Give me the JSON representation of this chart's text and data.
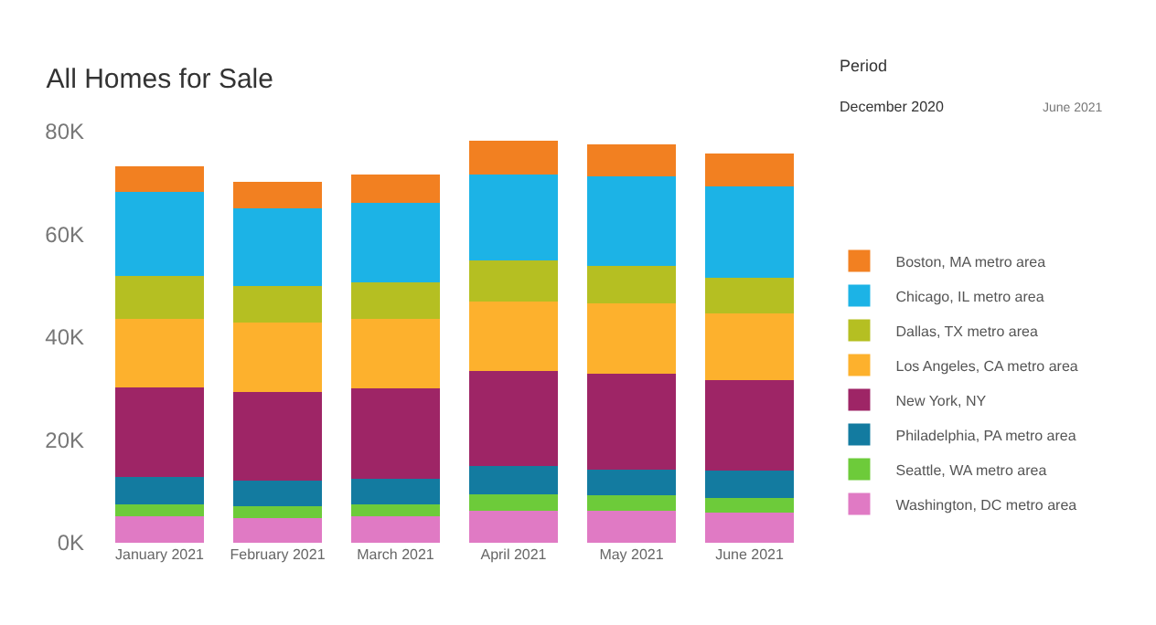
{
  "chart_data": {
    "type": "bar",
    "stacked": true,
    "title": "All Homes for Sale",
    "categories": [
      "January 2021",
      "February 2021",
      "March 2021",
      "April 2021",
      "May 2021",
      "June 2021"
    ],
    "series": [
      {
        "name": "Washington, DC metro area",
        "color": "#e07ac4",
        "values": [
          5.1,
          4.8,
          5.1,
          6.3,
          6.3,
          5.9
        ]
      },
      {
        "name": "Seattle, WA metro area",
        "color": "#6dcb3a",
        "values": [
          2.4,
          2.3,
          2.4,
          3.2,
          2.9,
          2.8
        ]
      },
      {
        "name": "Philadelphia, PA metro area",
        "color": "#137ba0",
        "values": [
          5.3,
          5.0,
          4.9,
          5.5,
          5.1,
          5.3
        ]
      },
      {
        "name": "New York, NY",
        "color": "#9e2566",
        "values": [
          17.4,
          17.2,
          17.6,
          18.4,
          18.6,
          17.7
        ]
      },
      {
        "name": "Los Angeles, CA metro area",
        "color": "#fdb12d",
        "values": [
          13.3,
          13.6,
          13.5,
          13.6,
          13.7,
          13.0
        ]
      },
      {
        "name": "Dallas, TX metro area",
        "color": "#b5bf22",
        "values": [
          8.4,
          7.0,
          7.2,
          8.0,
          7.3,
          6.9
        ]
      },
      {
        "name": "Chicago, IL metro area",
        "color": "#1cb3e6",
        "values": [
          16.3,
          15.2,
          15.5,
          16.6,
          17.4,
          17.7
        ]
      },
      {
        "name": "Boston, MA metro area",
        "color": "#f28021",
        "values": [
          5.1,
          5.1,
          5.5,
          6.7,
          6.3,
          6.4
        ]
      }
    ],
    "ylim": [
      0,
      80
    ],
    "yticks": [
      {
        "value": 0,
        "label": "0K"
      },
      {
        "value": 20,
        "label": "20K"
      },
      {
        "value": 40,
        "label": "40K"
      },
      {
        "value": 60,
        "label": "60K"
      },
      {
        "value": 80,
        "label": "80K"
      }
    ],
    "legend": "right",
    "annotations": [
      "Period",
      "December 2020",
      "June 2021"
    ]
  }
}
